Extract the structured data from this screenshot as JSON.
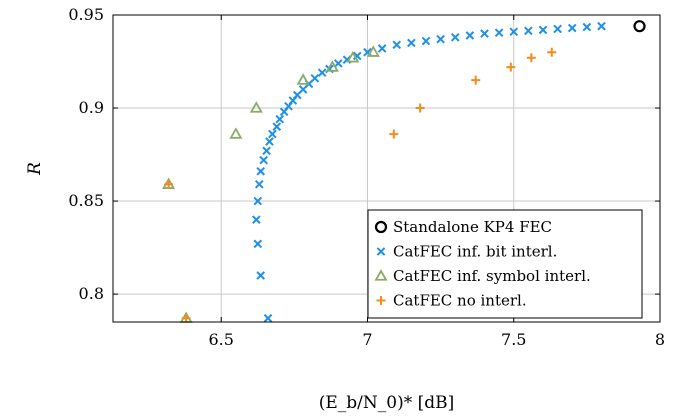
{
  "chart_data": {
    "type": "scatter",
    "xlabel": "(E_b/N_0)* [dB]",
    "ylabel": "R",
    "xlim": [
      6.13,
      8.0
    ],
    "ylim": [
      0.785,
      0.95
    ],
    "xticks": [
      6.5,
      7,
      7.5,
      8
    ],
    "yticks": [
      0.8,
      0.85,
      0.9,
      0.95
    ],
    "xtick_labels": [
      "6.5",
      "7",
      "7.5",
      "8"
    ],
    "ytick_labels": [
      "0.8",
      "0.85",
      "0.9",
      "0.95"
    ],
    "grid": true,
    "legend_position": "bottom-right",
    "series": [
      {
        "name": "Standalone KP4 FEC",
        "marker": "circle",
        "color": "#000000",
        "x": [
          7.93
        ],
        "y": [
          0.944
        ]
      },
      {
        "name": "CatFEC inf. bit interl.",
        "marker": "x",
        "color": "#1e90e6",
        "x": [
          6.66,
          6.635,
          6.625,
          6.62,
          6.625,
          6.63,
          6.635,
          6.645,
          6.655,
          6.665,
          6.675,
          6.69,
          6.7,
          6.715,
          6.73,
          6.745,
          6.76,
          6.78,
          6.8,
          6.82,
          6.845,
          6.87,
          6.9,
          6.93,
          6.965,
          7.0,
          7.05,
          7.1,
          7.15,
          7.2,
          7.25,
          7.3,
          7.35,
          7.4,
          7.45,
          7.5,
          7.55,
          7.6,
          7.65,
          7.7,
          7.75,
          7.8
        ],
        "y": [
          0.787,
          0.81,
          0.827,
          0.84,
          0.85,
          0.859,
          0.866,
          0.872,
          0.877,
          0.882,
          0.886,
          0.89,
          0.894,
          0.898,
          0.901,
          0.904,
          0.907,
          0.91,
          0.913,
          0.916,
          0.919,
          0.921,
          0.924,
          0.926,
          0.928,
          0.93,
          0.932,
          0.934,
          0.935,
          0.936,
          0.937,
          0.938,
          0.939,
          0.94,
          0.9405,
          0.941,
          0.9415,
          0.942,
          0.9425,
          0.943,
          0.9435,
          0.944
        ]
      },
      {
        "name": "CatFEC inf. symbol interl.",
        "marker": "triangle",
        "color": "#8aab6a",
        "x": [
          6.32,
          6.38,
          6.55,
          6.62,
          6.78,
          6.88,
          6.95,
          7.02
        ],
        "y": [
          0.859,
          0.787,
          0.886,
          0.9,
          0.915,
          0.922,
          0.927,
          0.93
        ]
      },
      {
        "name": "CatFEC no interl.",
        "marker": "plus",
        "color": "#f28c1e",
        "x": [
          6.32,
          6.38,
          7.09,
          7.18,
          7.37,
          7.49,
          7.56,
          7.63
        ],
        "y": [
          0.859,
          0.787,
          0.886,
          0.9,
          0.915,
          0.922,
          0.927,
          0.93
        ]
      }
    ]
  }
}
